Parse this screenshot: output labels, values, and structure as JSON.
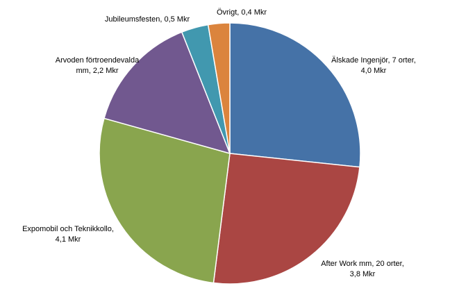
{
  "chart_data": {
    "type": "pie",
    "title": "",
    "slices": [
      {
        "label_lines": [
          "Älskade Ingenjör, 7 orter,",
          "4,0 Mkr"
        ],
        "value": 4.0,
        "color": "#4572A7"
      },
      {
        "label_lines": [
          "After Work mm, 20 orter,",
          "3,8 Mkr"
        ],
        "value": 3.8,
        "color": "#AA4643"
      },
      {
        "label_lines": [
          "Expomobil och Teknikkollo,",
          "4,1 Mkr"
        ],
        "value": 4.1,
        "color": "#89A54E"
      },
      {
        "label_lines": [
          "Arvoden förtroendevalda",
          "mm, 2,2 Mkr"
        ],
        "value": 2.2,
        "color": "#71588F"
      },
      {
        "label_lines": [
          "Jubileumsfesten, 0,5 Mkr"
        ],
        "value": 0.5,
        "color": "#4198AF"
      },
      {
        "label_lines": [
          "Övrigt, 0,4 Mkr"
        ],
        "value": 0.4,
        "color": "#DB843D"
      }
    ]
  }
}
